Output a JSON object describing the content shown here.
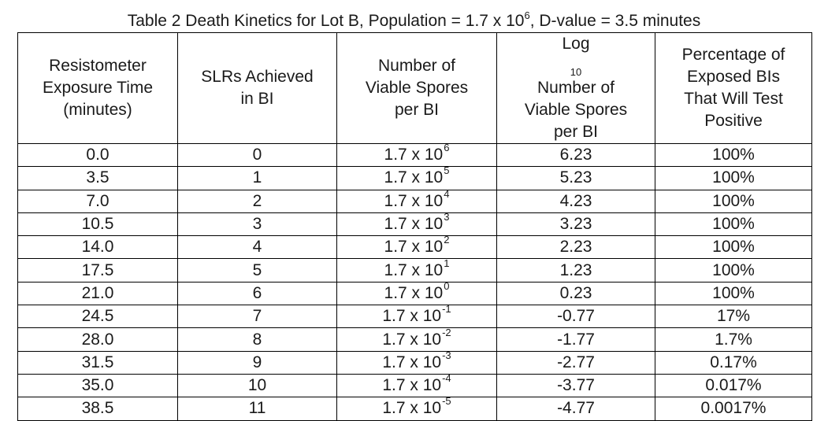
{
  "caption": {
    "prefix": "Table 2 Death Kinetics for Lot B, Population = 1.7 x 10",
    "exponent": "6",
    "suffix": ", D-value = 3.5 minutes"
  },
  "headers": {
    "col1": [
      "Resistometer",
      "Exposure Time",
      "(minutes)"
    ],
    "col2": [
      "SLRs Achieved",
      "in BI"
    ],
    "col3": [
      "Number of",
      "Viable Spores",
      "per BI"
    ],
    "col4": {
      "pre": "Log",
      "sub": "10",
      "post": " Number of",
      "line2": "Viable Spores",
      "line3": "per BI"
    },
    "col5": [
      "Percentage of",
      "Exposed BIs",
      "That Will Test",
      "Positive"
    ]
  },
  "rows": [
    {
      "time": "0.0",
      "slr": "0",
      "base": "1.7 x 10",
      "exp": "6",
      "log": "6.23",
      "pct": "100%"
    },
    {
      "time": "3.5",
      "slr": "1",
      "base": "1.7 x 10",
      "exp": "5",
      "log": "5.23",
      "pct": "100%"
    },
    {
      "time": "7.0",
      "slr": "2",
      "base": "1.7 x 10",
      "exp": "4",
      "log": "4.23",
      "pct": "100%"
    },
    {
      "time": "10.5",
      "slr": "3",
      "base": "1.7 x 10",
      "exp": "3",
      "log": "3.23",
      "pct": "100%"
    },
    {
      "time": "14.0",
      "slr": "4",
      "base": "1.7 x 10",
      "exp": "2",
      "log": "2.23",
      "pct": "100%"
    },
    {
      "time": "17.5",
      "slr": "5",
      "base": "1.7 x 10",
      "exp": "1",
      "log": "1.23",
      "pct": "100%"
    },
    {
      "time": "21.0",
      "slr": "6",
      "base": "1.7 x 10",
      "exp": "0",
      "log": "0.23",
      "pct": "100%"
    },
    {
      "time": "24.5",
      "slr": "7",
      "base": "1.7 x 10",
      "exp": "-1",
      "log": "-0.77",
      "pct": "17%"
    },
    {
      "time": "28.0",
      "slr": "8",
      "base": "1.7 x 10",
      "exp": "-2",
      "log": "-1.77",
      "pct": "1.7%"
    },
    {
      "time": "31.5",
      "slr": "9",
      "base": "1.7 x 10",
      "exp": "-3",
      "log": "-2.77",
      "pct": "0.17%"
    },
    {
      "time": "35.0",
      "slr": "10",
      "base": "1.7 x 10",
      "exp": "-4",
      "log": "-3.77",
      "pct": "0.017%"
    },
    {
      "time": "38.5",
      "slr": "11",
      "base": "1.7 x 10",
      "exp": "-5",
      "log": "-4.77",
      "pct": "0.0017%"
    }
  ]
}
